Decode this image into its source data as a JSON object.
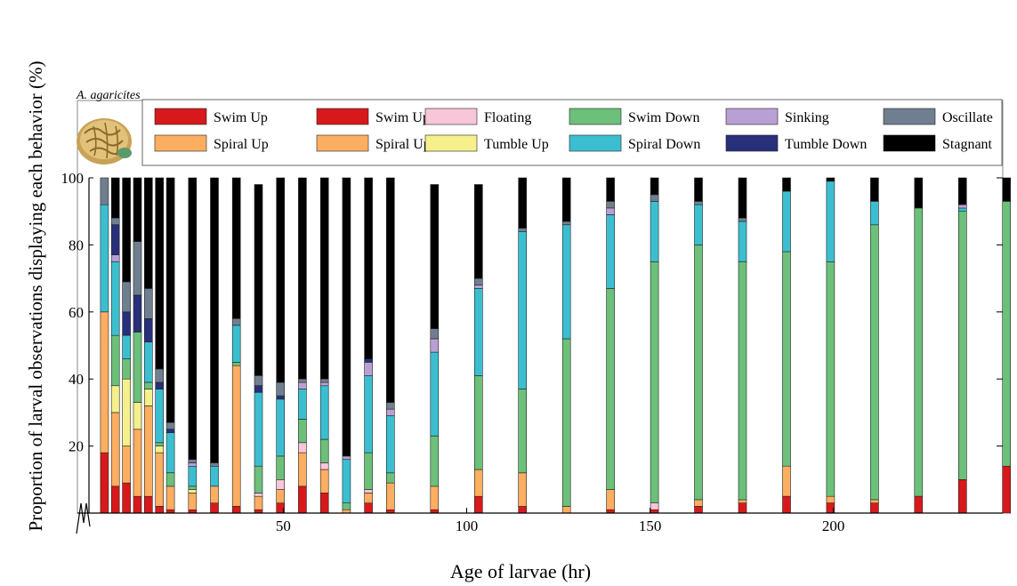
{
  "chart_data": {
    "type": "bar",
    "stacked": true,
    "species_label": "A. agaricites",
    "xlabel": "Age of larvae (hr)",
    "ylabel": "Proportion of larval observations displaying each behavior (%)",
    "xlim": [
      -3,
      244
    ],
    "ylim": [
      0,
      100
    ],
    "x_ticks": [
      50,
      100,
      150,
      200
    ],
    "y_ticks": [
      20,
      40,
      60,
      80,
      100
    ],
    "axis_break": true,
    "behaviors": [
      {
        "key": "swim_up",
        "name": "Swim Up",
        "color": "#d7191c"
      },
      {
        "key": "spiral_up",
        "name": "Spiral Up",
        "color": "#fdae61"
      },
      {
        "key": "floating",
        "name": "Floating",
        "color": "#f8c6d8"
      },
      {
        "key": "tumble_up",
        "name": "Tumble Up",
        "color": "#f5f08c"
      },
      {
        "key": "swim_down",
        "name": "Swim Down",
        "color": "#6cc07a"
      },
      {
        "key": "spiral_down",
        "name": "Spiral Down",
        "color": "#3bbfd0"
      },
      {
        "key": "sinking",
        "name": "Sinking",
        "color": "#b9a0d4"
      },
      {
        "key": "tumble_down",
        "name": "Tumble Down",
        "color": "#28307a"
      },
      {
        "key": "oscillate",
        "name": "Oscillate",
        "color": "#6f7f8f"
      },
      {
        "key": "stagnant",
        "name": "Stagnant",
        "color": "#000000"
      }
    ],
    "legend": {
      "placement": "top",
      "items": [
        {
          "label": "Swim Up",
          "color": "#d7191c"
        },
        {
          "label": "Swim Up",
          "color": "#d7191c"
        },
        {
          "label": "Floating",
          "color": "#f8c6d8"
        },
        {
          "label": "Swim Down",
          "color": "#6cc07a"
        },
        {
          "label": "Sinking",
          "color": "#b9a0d4"
        },
        {
          "label": "Oscillate",
          "color": "#6f7f8f"
        },
        {
          "label": "Spiral Up",
          "color": "#fdae61"
        },
        {
          "label": "Spiral Up",
          "color": "#fdae61"
        },
        {
          "label": "Tumble Up",
          "color": "#f5f08c"
        },
        {
          "label": "Spiral Down",
          "color": "#3bbfd0"
        },
        {
          "label": "Tumble Down",
          "color": "#28307a"
        },
        {
          "label": "Stagnant",
          "color": "#000000"
        }
      ]
    },
    "series_order": [
      "swim_up",
      "spiral_up",
      "floating",
      "tumble_up",
      "swim_down",
      "spiral_down",
      "sinking",
      "tumble_down",
      "oscillate",
      "stagnant"
    ],
    "bars": [
      {
        "x": 0,
        "values": [
          18,
          42,
          0,
          0,
          0,
          32,
          0,
          0,
          8,
          0
        ]
      },
      {
        "x": 3,
        "values": [
          8,
          22,
          0,
          8,
          15,
          22,
          2,
          9,
          2,
          12
        ]
      },
      {
        "x": 6,
        "values": [
          9,
          11,
          0,
          20,
          6,
          7,
          0,
          7,
          9,
          31
        ]
      },
      {
        "x": 9,
        "values": [
          5,
          20,
          0,
          8,
          21,
          0,
          0,
          11,
          16,
          19
        ]
      },
      {
        "x": 12,
        "values": [
          5,
          27,
          0,
          5,
          2,
          12,
          0,
          7,
          9,
          33
        ]
      },
      {
        "x": 15,
        "values": [
          2,
          16,
          0,
          2,
          1,
          16,
          0,
          2,
          4,
          57
        ]
      },
      {
        "x": 18,
        "values": [
          1,
          7,
          0,
          0,
          4,
          12,
          0,
          1,
          2,
          73
        ]
      },
      {
        "x": 24,
        "values": [
          1,
          5,
          0,
          1,
          1,
          6,
          1,
          0,
          1,
          84
        ]
      },
      {
        "x": 30,
        "values": [
          3,
          5,
          0,
          0,
          0,
          6,
          0,
          0,
          1,
          85
        ]
      },
      {
        "x": 36,
        "values": [
          2,
          42,
          0,
          0,
          1,
          11,
          0,
          0,
          2,
          42
        ]
      },
      {
        "x": 42,
        "values": [
          1,
          4,
          1,
          0,
          8,
          22,
          0,
          2,
          3,
          57
        ]
      },
      {
        "x": 48,
        "values": [
          3,
          4,
          3,
          0,
          7,
          17,
          0,
          1,
          4,
          61
        ]
      },
      {
        "x": 54,
        "values": [
          8,
          10,
          3,
          0,
          7,
          9,
          2,
          0,
          1,
          60
        ]
      },
      {
        "x": 60,
        "values": [
          6,
          7,
          2,
          0,
          7,
          16,
          1,
          0,
          1,
          60
        ]
      },
      {
        "x": 66,
        "values": [
          0,
          1,
          0,
          0,
          2,
          13,
          1,
          0,
          0,
          83
        ]
      },
      {
        "x": 72,
        "values": [
          3,
          3,
          1,
          0,
          11,
          23,
          4,
          1,
          0,
          54
        ]
      },
      {
        "x": 78,
        "values": [
          1,
          8,
          0,
          0,
          3,
          17,
          2,
          0,
          2,
          67
        ]
      },
      {
        "x": 90,
        "values": [
          1,
          7,
          0,
          0,
          15,
          25,
          4,
          0,
          3,
          43
        ]
      },
      {
        "x": 102,
        "values": [
          5,
          8,
          0,
          0,
          28,
          26,
          1,
          0,
          2,
          28
        ]
      },
      {
        "x": 114,
        "values": [
          2,
          10,
          0,
          0,
          25,
          47,
          0,
          0,
          1,
          15
        ]
      },
      {
        "x": 126,
        "values": [
          0,
          2,
          0,
          0,
          50,
          34,
          0,
          0,
          1,
          13
        ]
      },
      {
        "x": 138,
        "values": [
          1,
          6,
          0,
          0,
          60,
          22,
          2,
          0,
          2,
          7
        ]
      },
      {
        "x": 150,
        "values": [
          1,
          0,
          2,
          0,
          72,
          18,
          0,
          0,
          2,
          5
        ]
      },
      {
        "x": 162,
        "values": [
          2,
          2,
          0,
          0,
          76,
          12,
          0,
          0,
          1,
          7
        ]
      },
      {
        "x": 174,
        "values": [
          3,
          1,
          0,
          0,
          71,
          12,
          0,
          0,
          1,
          12
        ]
      },
      {
        "x": 186,
        "values": [
          5,
          9,
          0,
          0,
          64,
          18,
          0,
          0,
          0,
          4
        ]
      },
      {
        "x": 198,
        "values": [
          3,
          2,
          0,
          0,
          70,
          24,
          0,
          0,
          0,
          1
        ]
      },
      {
        "x": 210,
        "values": [
          3,
          1,
          0,
          0,
          82,
          7,
          0,
          0,
          0,
          7
        ]
      },
      {
        "x": 222,
        "values": [
          5,
          0,
          0,
          0,
          86,
          0,
          0,
          0,
          0,
          9
        ]
      },
      {
        "x": 234,
        "values": [
          10,
          0,
          0,
          0,
          80,
          1,
          1,
          0,
          0,
          8
        ]
      },
      {
        "x": 246,
        "values": [
          14,
          0,
          0,
          0,
          79,
          0,
          0,
          0,
          0,
          7
        ]
      }
    ]
  }
}
